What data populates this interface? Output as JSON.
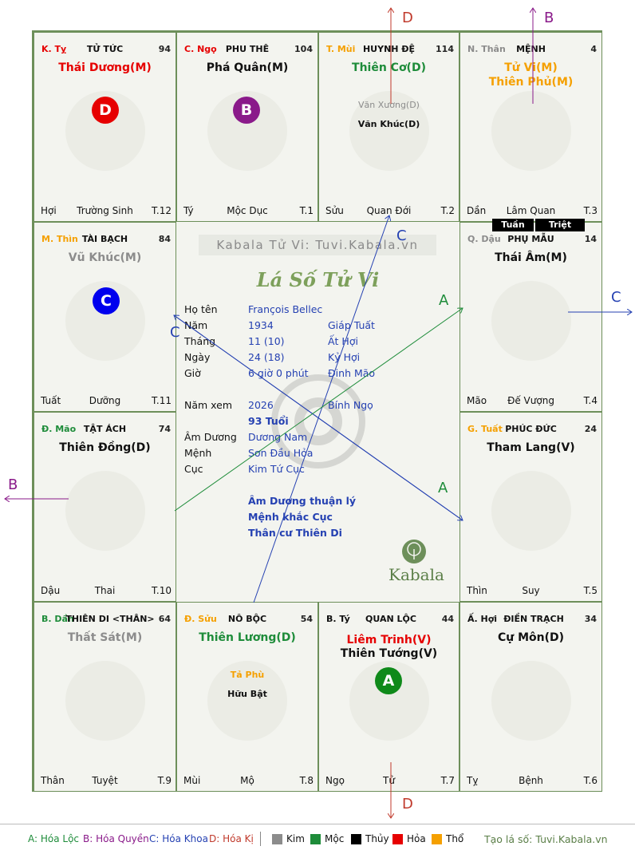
{
  "palaces": {
    "ty": {
      "can": "K. Tỵ",
      "name": "TỬ TỨC",
      "num": "94",
      "stars": [
        "Thái Dương(M)"
      ],
      "minor": [],
      "truong": "Trường Sinh",
      "branch_left": "Hợi",
      "t": "T.12"
    },
    "ngo": {
      "can": "C. Ngọ",
      "name": "PHU THÊ",
      "num": "104",
      "stars": [
        "Phá Quân(M)"
      ],
      "minor": [],
      "truong": "Mộc Dục",
      "branch_left": "Tý",
      "t": "T.1"
    },
    "mui": {
      "can": "T. Mùi",
      "name": "HUYNH ĐỆ",
      "num": "114",
      "stars": [
        "Thiên Cơ(D)"
      ],
      "minor": [
        "Văn Xương(D)",
        "Văn Khúc(D)"
      ],
      "truong": "Quan Đới",
      "branch_left": "Sửu",
      "t": "T.2"
    },
    "than": {
      "can": "N. Thân",
      "name": "MỆNH",
      "num": "4",
      "stars": [
        "Tử Vi(M)",
        "Thiên Phủ(M)"
      ],
      "minor": [],
      "truong": "Lâm Quan",
      "branch_left": "Dần",
      "t": "T.3"
    },
    "thin": {
      "can": "M. Thìn",
      "name": "TÀI BẠCH",
      "num": "84",
      "stars": [
        "Vũ Khúc(M)"
      ],
      "minor": [],
      "truong": "Dưỡng",
      "branch_left": "Tuất",
      "t": "T.11"
    },
    "dau": {
      "can": "Q. Dậu",
      "name": "PHỤ MẪU",
      "num": "14",
      "stars": [
        "Thái Âm(M)"
      ],
      "minor": [],
      "truong": "Đế Vượng",
      "branch_left": "Mão",
      "t": "T.4",
      "tuan": "Tuần",
      "triet": "Triệt"
    },
    "mao": {
      "can": "Đ. Mão",
      "name": "TẬT ÁCH",
      "num": "74",
      "stars": [
        "Thiên Đồng(D)"
      ],
      "minor": [],
      "truong": "Thai",
      "branch_left": "Dậu",
      "t": "T.10"
    },
    "tuat": {
      "can": "G. Tuất",
      "name": "PHÚC ĐỨC",
      "num": "24",
      "stars": [
        "Tham Lang(V)"
      ],
      "minor": [],
      "truong": "Suy",
      "branch_left": "Thìn",
      "t": "T.5"
    },
    "dan": {
      "can": "B. Dần",
      "name": "THIÊN DI <THÂN>",
      "num": "64",
      "stars": [
        "Thất Sát(M)"
      ],
      "minor": [],
      "truong": "Tuyệt",
      "branch_left": "Thân",
      "t": "T.9"
    },
    "suu": {
      "can": "Đ. Sửu",
      "name": "NÔ BỘC",
      "num": "54",
      "stars": [
        "Thiên Lương(D)"
      ],
      "minor": [
        "Tả Phù",
        "Hữu Bật"
      ],
      "truong": "Mộ",
      "branch_left": "Mùi",
      "t": "T.8"
    },
    "tyrat": {
      "can": "B. Tý",
      "name": "QUAN LỘC",
      "num": "44",
      "stars": [
        "Liêm Trinh(V)",
        "Thiên Tướng(V)"
      ],
      "minor": [],
      "truong": "Tử",
      "branch_left": "Ngọ",
      "t": "T.7"
    },
    "hoi": {
      "can": "Ấ. Hợi",
      "name": "ĐIỀN TRẠCH",
      "num": "34",
      "stars": [
        "Cự Môn(D)"
      ],
      "minor": [],
      "truong": "Bệnh",
      "branch_left": "Tỵ",
      "t": "T.6"
    }
  },
  "badges": {
    "d": "D",
    "b": "B",
    "c": "C",
    "a": "A"
  },
  "center": {
    "watermark": "Kabala Tử Vi: Tuvi.Kabala.vn",
    "title": "Lá Số Tử Vi",
    "labels": {
      "hoten": "Họ tên",
      "nam": "Năm",
      "thang": "Tháng",
      "ngay": "Ngày",
      "gio": "Giờ",
      "namxem": "Năm xem",
      "amduong": "Âm Dương",
      "menh": "Mệnh",
      "cuc": "Cục"
    },
    "values": {
      "hoten": "François Bellec",
      "nam": "1934",
      "nam2": "Giáp Tuất",
      "thang": "11  (10)",
      "thang2": "Ất Hợi",
      "ngay": "24  (18)",
      "ngay2": "Kỷ Hợi",
      "gio": "6 giờ 0 phút",
      "gio2": "Đinh Mão",
      "namxem": "2026",
      "namxem2": "Bính Ngọ",
      "tuoi": "93 Tuổi",
      "amduong": "Dương Nam",
      "menh": "Sơn Đầu Hỏa",
      "cuc": "Kim Tứ Cục"
    },
    "notes": [
      "Âm Dương thuận lý",
      "Mệnh khắc Cục",
      "Thân cư Thiên Di"
    ],
    "logo": "Kabala"
  },
  "arrows": {
    "d_top": "D",
    "b_top": "B",
    "c_right": "C",
    "b_left": "B",
    "d_bottom": "D",
    "c_mid": "C",
    "c_left": "C",
    "a_upper": "A",
    "a_lower": "A"
  },
  "legend": {
    "a": "A: Hóa Lộc",
    "b": "B: Hóa Quyền",
    "c": "C: Hóa Khoa",
    "d": "D: Hóa Kị",
    "kim": "Kim",
    "moc": "Mộc",
    "thuy": "Thủy",
    "hoa": "Hỏa",
    "tho": "Thổ",
    "site": "Tạo lá số: Tuvi.Kabala.vn"
  },
  "colors": {
    "kim": "#8c8c8c",
    "moc": "#1e8c3a",
    "thuy": "#000000",
    "hoa": "#e60000",
    "tho": "#f5a000",
    "border": "#6d8f5a",
    "blue": "#2541b2",
    "purple": "#8a1a8a",
    "green": "#1e8c3a"
  }
}
